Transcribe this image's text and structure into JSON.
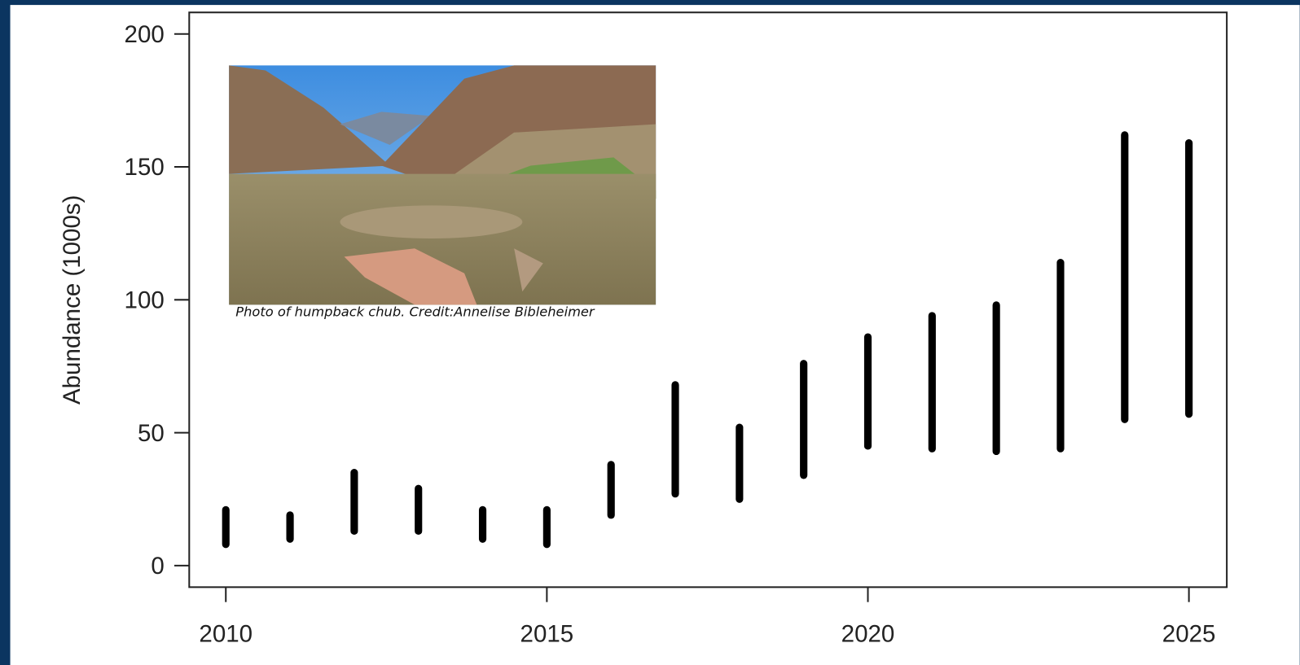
{
  "chart_data": {
    "type": "range-bar",
    "y_label": "Abundance (1000s)",
    "photo_caption": "Photo of humpback chub. Credit:Annelise Bibleheimer",
    "x": [
      2010,
      2011,
      2012,
      2013,
      2014,
      2015,
      2016,
      2017,
      2018,
      2019,
      2020,
      2021,
      2022,
      2023,
      2024,
      2025
    ],
    "low": [
      8,
      10,
      13,
      13,
      10,
      8,
      19,
      27,
      25,
      34,
      45,
      44,
      43,
      44,
      55,
      57
    ],
    "high": [
      21,
      19,
      35,
      29,
      21,
      21,
      38,
      68,
      52,
      76,
      86,
      94,
      98,
      114,
      162,
      159
    ],
    "color": "#000000",
    "xlim": [
      2009.43,
      2025.59
    ],
    "xticks": [
      2010,
      2015,
      2020,
      2025
    ],
    "ylim": [
      -8.1,
      208.1
    ],
    "yticks": [
      0,
      50,
      100,
      150,
      200
    ]
  }
}
